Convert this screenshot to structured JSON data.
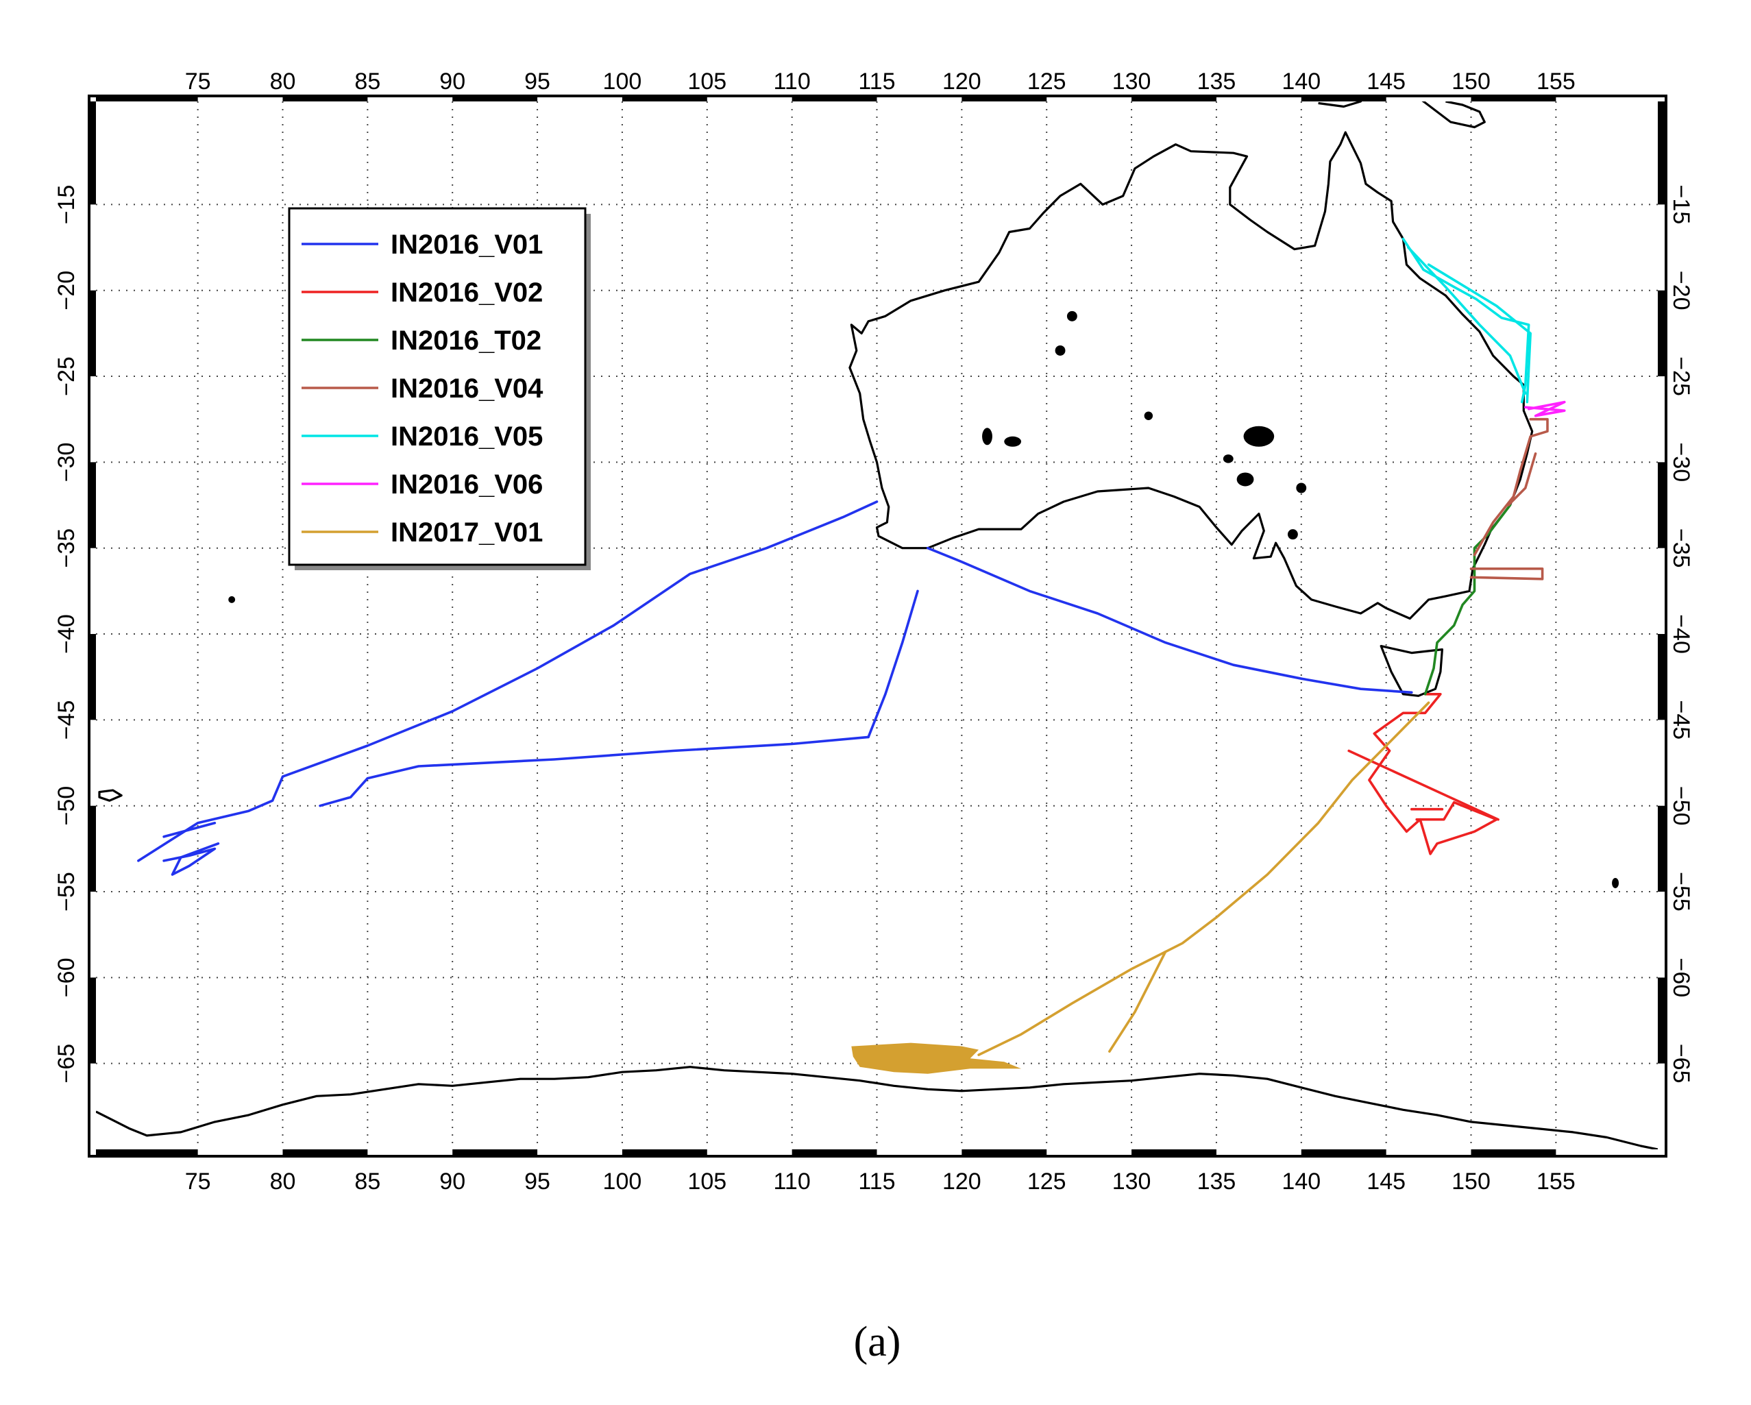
{
  "figure": {
    "caption": "(a)"
  },
  "map": {
    "lon_range": [
      69,
      161
    ],
    "lat_range": [
      -70,
      -9
    ],
    "lon_ticks": [
      75,
      80,
      85,
      90,
      95,
      100,
      105,
      110,
      115,
      120,
      125,
      130,
      135,
      140,
      145,
      150,
      155
    ],
    "lat_ticks": [
      -15,
      -20,
      -25,
      -30,
      -35,
      -40,
      -45,
      -50,
      -55,
      -60,
      -65
    ],
    "grid": true,
    "frame": "black-white checkered border"
  },
  "legend": {
    "position": "upper-left",
    "entries": [
      {
        "label": "IN2016_V01",
        "color": "#2233ee"
      },
      {
        "label": "IN2016_V02",
        "color": "#ee2222"
      },
      {
        "label": "IN2016_T02",
        "color": "#228822"
      },
      {
        "label": "IN2016_V04",
        "color": "#b85a4a"
      },
      {
        "label": "IN2016_V05",
        "color": "#00e5e5"
      },
      {
        "label": "IN2016_V06",
        "color": "#ff22ff"
      },
      {
        "label": "IN2017_V01",
        "color": "#d4a030"
      }
    ]
  },
  "tracks": [
    {
      "name": "IN2016_V01",
      "color": "#2233ee",
      "segments": [
        [
          [
            115,
            -32.3
          ],
          [
            113,
            -33.2
          ],
          [
            108.5,
            -35
          ],
          [
            104,
            -36.5
          ],
          [
            99.5,
            -39.5
          ],
          [
            95,
            -42
          ],
          [
            90,
            -44.5
          ],
          [
            85,
            -46.5
          ],
          [
            80,
            -48.3
          ],
          [
            79.4,
            -49.7
          ],
          [
            78,
            -50.3
          ],
          [
            75,
            -51
          ],
          [
            71.5,
            -53.2
          ]
        ],
        [
          [
            73,
            -51.8
          ],
          [
            76,
            -51
          ]
        ],
        [
          [
            73,
            -53.2
          ],
          [
            74.5,
            -52.9
          ],
          [
            76,
            -52.5
          ],
          [
            74.5,
            -53.5
          ],
          [
            73.5,
            -54
          ],
          [
            74,
            -53
          ],
          [
            76.2,
            -52.2
          ]
        ],
        [
          [
            118,
            -35
          ],
          [
            120,
            -35.8
          ],
          [
            124,
            -37.5
          ],
          [
            128,
            -38.8
          ],
          [
            132,
            -40.5
          ],
          [
            136,
            -41.8
          ],
          [
            140,
            -42.6
          ],
          [
            143.5,
            -43.2
          ],
          [
            146.5,
            -43.4
          ]
        ],
        [
          [
            117.4,
            -37.5
          ],
          [
            116.5,
            -40.5
          ],
          [
            115.5,
            -43.5
          ],
          [
            114.5,
            -46
          ]
        ],
        [
          [
            114.5,
            -46
          ],
          [
            110,
            -46.4
          ],
          [
            103,
            -46.8
          ],
          [
            96,
            -47.3
          ],
          [
            88,
            -47.7
          ],
          [
            85,
            -48.4
          ],
          [
            84,
            -49.5
          ],
          [
            82.2,
            -50
          ]
        ]
      ]
    },
    {
      "name": "IN2016_V02",
      "color": "#ee2222",
      "segments": [
        [
          [
            147.3,
            -43.5
          ],
          [
            148.2,
            -43.5
          ],
          [
            147.3,
            -44.6
          ],
          [
            146,
            -44.6
          ],
          [
            144.3,
            -45.8
          ],
          [
            145.2,
            -46.8
          ],
          [
            144,
            -48.5
          ],
          [
            145,
            -50
          ],
          [
            146.2,
            -51.5
          ],
          [
            147,
            -50.8
          ],
          [
            147.6,
            -52.8
          ],
          [
            148,
            -52.2
          ],
          [
            150.2,
            -51.5
          ],
          [
            151.5,
            -50.8
          ],
          [
            149,
            -49.8
          ],
          [
            148.4,
            -50.8
          ],
          [
            146.8,
            -50.8
          ]
        ],
        [
          [
            142.8,
            -46.8
          ],
          [
            151.6,
            -50.8
          ]
        ],
        [
          [
            146.5,
            -50.2
          ],
          [
            148.3,
            -50.2
          ]
        ]
      ]
    },
    {
      "name": "IN2016_T02",
      "color": "#228822",
      "segments": [
        [
          [
            147.3,
            -43.5
          ],
          [
            147.8,
            -42
          ],
          [
            148,
            -40.5
          ],
          [
            149,
            -39.5
          ],
          [
            149.5,
            -38.3
          ],
          [
            150.2,
            -37.5
          ],
          [
            150.2,
            -35
          ],
          [
            151,
            -34.2
          ],
          [
            152.3,
            -32.5
          ]
        ]
      ]
    },
    {
      "name": "IN2016_V04",
      "color": "#b85a4a",
      "segments": [
        [
          [
            150,
            -36.7
          ],
          [
            154.2,
            -36.8
          ],
          [
            154.2,
            -36.2
          ],
          [
            150,
            -36.2
          ]
        ],
        [
          [
            150.2,
            -35.4
          ],
          [
            151.3,
            -33.5
          ],
          [
            152.5,
            -32
          ],
          [
            152.9,
            -30.5
          ],
          [
            153.5,
            -28.5
          ],
          [
            154.5,
            -28.2
          ],
          [
            154.5,
            -27.5
          ],
          [
            153.5,
            -27.5
          ]
        ],
        [
          [
            152.2,
            -32.5
          ],
          [
            153.2,
            -31.5
          ],
          [
            153.8,
            -29.5
          ]
        ]
      ]
    },
    {
      "name": "IN2016_V05",
      "color": "#00e5e5",
      "segments": [
        [
          [
            146,
            -17
          ],
          [
            147.2,
            -18.8
          ],
          [
            149,
            -19.8
          ],
          [
            150.3,
            -20.5
          ],
          [
            151.8,
            -21.6
          ],
          [
            153.4,
            -22
          ],
          [
            153.2,
            -25.5
          ],
          [
            153,
            -26.5
          ]
        ],
        [
          [
            147.5,
            -18.5
          ],
          [
            151.5,
            -20.9
          ],
          [
            153.5,
            -22.5
          ],
          [
            153.3,
            -26.5
          ]
        ],
        [
          [
            146.3,
            -17.5
          ],
          [
            148.5,
            -19.8
          ],
          [
            150.5,
            -22
          ],
          [
            152.3,
            -23.8
          ],
          [
            153.2,
            -26
          ]
        ]
      ]
    },
    {
      "name": "IN2016_V06",
      "color": "#ff22ff",
      "segments": [
        [
          [
            153.2,
            -26.8
          ],
          [
            155.5,
            -27
          ],
          [
            153.8,
            -27.3
          ],
          [
            155.5,
            -26.5
          ],
          [
            153.4,
            -26.9
          ]
        ]
      ]
    },
    {
      "name": "IN2017_V01",
      "color": "#d4a030",
      "segments": [
        [
          [
            147.5,
            -44
          ],
          [
            145,
            -46.5
          ],
          [
            143,
            -48.5
          ],
          [
            141,
            -51
          ],
          [
            138,
            -54
          ],
          [
            135,
            -56.5
          ],
          [
            133,
            -58
          ],
          [
            130,
            -59.5
          ],
          [
            126.5,
            -61.5
          ],
          [
            123.5,
            -63.3
          ],
          [
            121,
            -64.5
          ]
        ],
        [
          [
            132,
            -58.5
          ],
          [
            130.2,
            -62
          ],
          [
            128.7,
            -64.3
          ]
        ]
      ]
    }
  ]
}
